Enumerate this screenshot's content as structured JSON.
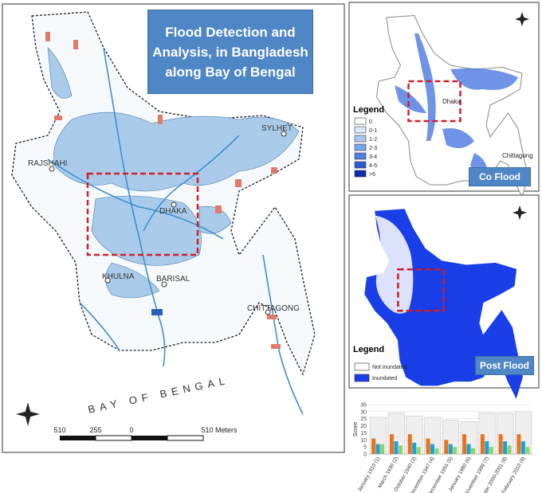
{
  "main_map": {
    "title": "Flood Detection and Analysis, in Bangladesh along Bay of Bengal",
    "cities": [
      "SYLHET",
      "RAJSHAHI",
      "DHAKA",
      "KHULNA",
      "BARISAL",
      "CHITTAGONG"
    ],
    "sea": "BAY OF BENGAL",
    "scale_labels": [
      "510",
      "255",
      "0",
      "510 Meters"
    ]
  },
  "co_flood": {
    "legend_title": "Legend",
    "legend_items": [
      "0",
      "0-1",
      "1-2",
      "2-3",
      "3-4",
      "4-5",
      ">5"
    ],
    "cities": [
      "Dhaka",
      "Chittagong"
    ],
    "caption": "Co Flood"
  },
  "post_flood": {
    "legend_title": "Legend",
    "legend_items": [
      "Not inundated",
      "Inundated"
    ],
    "caption": "Post Flood"
  },
  "chart_data": {
    "type": "bar",
    "y_label": "Score",
    "categories": [
      "January 1910 (1)",
      "March 1930 (2)",
      "October 1940 (3)",
      "December 1947 (4)",
      "December 1955 (5)",
      "January 1980 (6)",
      "November 1999 (7)",
      "Winter 2000-2001 (8)",
      "February 2010 (9)"
    ],
    "series": [
      {
        "color": "#eeeeee",
        "values": [
          26,
          29,
          27,
          26,
          24,
          23,
          29,
          29,
          30
        ]
      },
      {
        "color": "#e8731c",
        "values": [
          11,
          14,
          14,
          11,
          10,
          14,
          14,
          14,
          14
        ]
      },
      {
        "color": "#1ea0d8",
        "values": [
          7,
          9,
          8,
          7,
          7,
          7,
          9,
          9,
          9
        ]
      },
      {
        "color": "#8ed46a",
        "values": [
          7,
          6,
          5,
          4,
          5,
          4,
          5,
          6,
          5
        ]
      }
    ],
    "ylim": [
      0,
      35
    ],
    "yticks": [
      0,
      5,
      10,
      15,
      20,
      25,
      30,
      35
    ],
    "grid": true
  }
}
